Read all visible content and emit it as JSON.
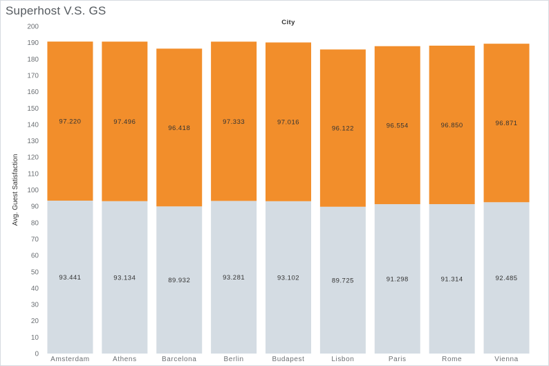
{
  "window_title": "Superhost V.S. GS",
  "chart_data": {
    "type": "bar",
    "stacked": true,
    "title": "Superhost V.S. GS",
    "column_header": "City",
    "xlabel": "",
    "ylabel": "Avg. Guest Satisfaction",
    "ylim": [
      0,
      200
    ],
    "yticks": [
      0,
      10,
      20,
      30,
      40,
      50,
      60,
      70,
      80,
      90,
      100,
      110,
      120,
      130,
      140,
      150,
      160,
      170,
      180,
      190,
      200
    ],
    "grid": false,
    "categories": [
      "Amsterdam",
      "Athens",
      "Barcelona",
      "Berlin",
      "Budapest",
      "Lisbon",
      "Paris",
      "Rome",
      "Vienna"
    ],
    "series": [
      {
        "color": "#d4dce3",
        "values": [
          93.441,
          93.134,
          89.932,
          93.281,
          93.102,
          89.725,
          91.298,
          91.314,
          92.485
        ]
      },
      {
        "color": "#f28e2b",
        "values": [
          97.22,
          97.496,
          96.418,
          97.333,
          97.016,
          96.122,
          96.554,
          96.85,
          96.871
        ]
      }
    ]
  }
}
